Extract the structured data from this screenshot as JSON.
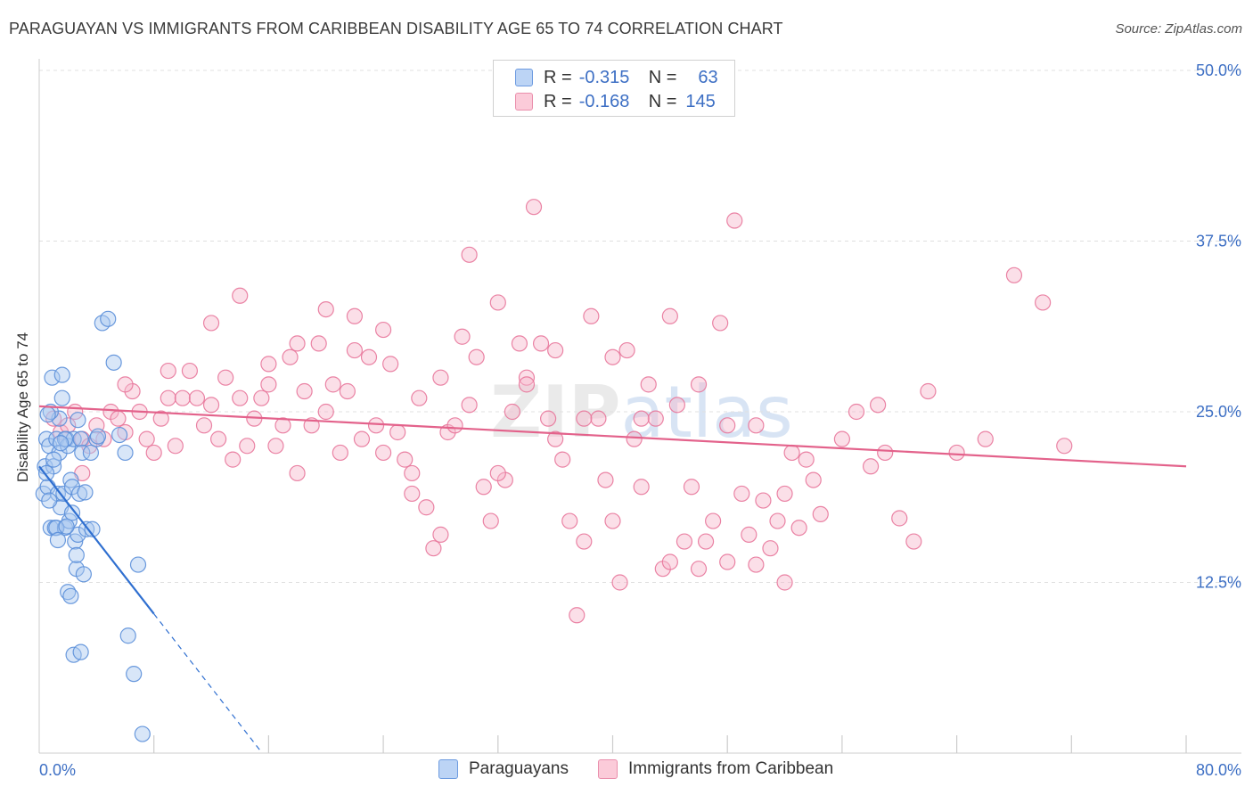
{
  "chart_data": {
    "type": "scatter",
    "title": "PARAGUAYAN VS IMMIGRANTS FROM CARIBBEAN DISABILITY AGE 65 TO 74 CORRELATION CHART",
    "source": "Source: ZipAtlas.com",
    "xlabel": "",
    "ylabel": "Disability Age 65 to 74",
    "xlim": [
      0,
      80
    ],
    "ylim": [
      0,
      50
    ],
    "x_tick_labels": [
      "0.0%",
      "80.0%"
    ],
    "y_ticks": [
      12.5,
      25.0,
      37.5,
      50.0
    ],
    "y_tick_labels": [
      "12.5%",
      "25.0%",
      "37.5%",
      "50.0%"
    ],
    "watermark": "ZIPatlas",
    "legend": {
      "r_label": "R =",
      "n_label": "N =",
      "rows": [
        {
          "r": "-0.315",
          "n": "63"
        },
        {
          "r": "-0.168",
          "n": "145"
        }
      ]
    },
    "series": [
      {
        "name": "Paraguayans",
        "color": "#5b8fd9",
        "fill": "#a8c7f0",
        "trend": {
          "x0": 0.0,
          "y0": 21.0,
          "x1": 8.0,
          "y1": 10.2,
          "dash_x1": 15.5
        },
        "points": [
          [
            0.3,
            19.0
          ],
          [
            0.4,
            21.0
          ],
          [
            0.5,
            23.0
          ],
          [
            0.6,
            19.5
          ],
          [
            0.7,
            22.5
          ],
          [
            0.8,
            16.5
          ],
          [
            0.9,
            27.5
          ],
          [
            1.0,
            21.0
          ],
          [
            1.1,
            16.5
          ],
          [
            1.2,
            23.0
          ],
          [
            1.3,
            19.0
          ],
          [
            1.4,
            22.0
          ],
          [
            1.5,
            18.0
          ],
          [
            1.6,
            26.0
          ],
          [
            1.7,
            19.0
          ],
          [
            1.8,
            16.5
          ],
          [
            1.9,
            23.0
          ],
          [
            2.0,
            22.5
          ],
          [
            2.1,
            17.0
          ],
          [
            2.2,
            20.0
          ],
          [
            2.3,
            19.5
          ],
          [
            2.4,
            23.0
          ],
          [
            2.5,
            15.5
          ],
          [
            2.6,
            13.5
          ],
          [
            2.7,
            16.0
          ],
          [
            2.8,
            19.0
          ],
          [
            2.9,
            23.0
          ],
          [
            3.0,
            22.0
          ],
          [
            0.5,
            20.5
          ],
          [
            0.7,
            18.5
          ],
          [
            1.0,
            21.5
          ],
          [
            1.2,
            16.5
          ],
          [
            1.4,
            24.5
          ],
          [
            1.6,
            27.7
          ],
          [
            1.8,
            23.0
          ],
          [
            2.0,
            11.8
          ],
          [
            2.2,
            11.5
          ],
          [
            2.4,
            7.2
          ],
          [
            2.6,
            14.5
          ],
          [
            2.9,
            7.4
          ],
          [
            3.1,
            13.1
          ],
          [
            3.3,
            16.4
          ],
          [
            3.6,
            22.0
          ],
          [
            4.0,
            23.0
          ],
          [
            4.4,
            31.5
          ],
          [
            4.8,
            31.8
          ],
          [
            5.2,
            28.6
          ],
          [
            5.6,
            23.3
          ],
          [
            6.0,
            22.0
          ],
          [
            6.2,
            8.6
          ],
          [
            6.6,
            5.8
          ],
          [
            6.9,
            13.8
          ],
          [
            7.2,
            1.4
          ],
          [
            0.8,
            25.0
          ],
          [
            1.5,
            22.7
          ],
          [
            1.9,
            16.6
          ],
          [
            2.3,
            17.6
          ],
          [
            2.7,
            24.4
          ],
          [
            3.2,
            19.1
          ],
          [
            3.7,
            16.4
          ],
          [
            4.1,
            23.2
          ],
          [
            1.3,
            15.6
          ],
          [
            0.6,
            24.8
          ]
        ]
      },
      {
        "name": "Immigrants from Caribbean",
        "color": "#e8779b",
        "fill": "#f7b8cb",
        "trend": {
          "x0": 0.0,
          "y0": 25.4,
          "x1": 80.0,
          "y1": 21.0
        },
        "points": [
          [
            1.0,
            24.5
          ],
          [
            1.5,
            23.5
          ],
          [
            2.0,
            24.0
          ],
          [
            2.5,
            25.0
          ],
          [
            3.0,
            23.0
          ],
          [
            3.5,
            22.5
          ],
          [
            4.0,
            24.0
          ],
          [
            4.5,
            23.0
          ],
          [
            5.0,
            25.0
          ],
          [
            5.5,
            24.5
          ],
          [
            6.0,
            23.5
          ],
          [
            6.5,
            26.5
          ],
          [
            7.0,
            25.0
          ],
          [
            7.5,
            23.0
          ],
          [
            8.0,
            22.0
          ],
          [
            8.5,
            24.5
          ],
          [
            9.0,
            26.0
          ],
          [
            9.5,
            22.5
          ],
          [
            10.0,
            26.0
          ],
          [
            10.5,
            28.0
          ],
          [
            11.0,
            26.0
          ],
          [
            11.5,
            24.0
          ],
          [
            12.0,
            25.5
          ],
          [
            12.5,
            23.0
          ],
          [
            13.0,
            27.5
          ],
          [
            13.5,
            21.5
          ],
          [
            14.0,
            26.0
          ],
          [
            14.5,
            22.5
          ],
          [
            15.0,
            24.5
          ],
          [
            15.5,
            26.0
          ],
          [
            16.0,
            27.0
          ],
          [
            16.5,
            22.5
          ],
          [
            17.0,
            24.0
          ],
          [
            17.5,
            29.0
          ],
          [
            18.0,
            20.5
          ],
          [
            18.5,
            26.5
          ],
          [
            19.0,
            24.0
          ],
          [
            19.5,
            30.0
          ],
          [
            20.0,
            25.0
          ],
          [
            20.5,
            27.0
          ],
          [
            21.0,
            22.0
          ],
          [
            21.5,
            26.5
          ],
          [
            22.0,
            32.0
          ],
          [
            22.5,
            23.0
          ],
          [
            23.0,
            29.0
          ],
          [
            23.5,
            24.0
          ],
          [
            24.0,
            22.0
          ],
          [
            24.5,
            28.5
          ],
          [
            25.0,
            23.5
          ],
          [
            25.5,
            21.5
          ],
          [
            26.0,
            19.0
          ],
          [
            26.5,
            26.0
          ],
          [
            27.0,
            18.0
          ],
          [
            27.5,
            15.0
          ],
          [
            28.0,
            27.5
          ],
          [
            28.5,
            23.5
          ],
          [
            29.0,
            24.0
          ],
          [
            29.5,
            30.5
          ],
          [
            30.0,
            25.5
          ],
          [
            30.5,
            29.0
          ],
          [
            31.0,
            19.5
          ],
          [
            31.5,
            17.0
          ],
          [
            32.0,
            33.0
          ],
          [
            32.5,
            20.0
          ],
          [
            33.0,
            25.0
          ],
          [
            33.5,
            30.0
          ],
          [
            34.0,
            27.5
          ],
          [
            34.5,
            40.0
          ],
          [
            35.0,
            30.0
          ],
          [
            35.5,
            24.5
          ],
          [
            36.0,
            29.5
          ],
          [
            36.5,
            21.5
          ],
          [
            37.0,
            17.0
          ],
          [
            37.5,
            10.1
          ],
          [
            38.0,
            15.5
          ],
          [
            38.5,
            32.0
          ],
          [
            39.0,
            24.5
          ],
          [
            39.5,
            20.0
          ],
          [
            40.0,
            17.0
          ],
          [
            40.5,
            12.5
          ],
          [
            41.0,
            29.5
          ],
          [
            41.5,
            23.0
          ],
          [
            42.0,
            19.5
          ],
          [
            42.5,
            27.0
          ],
          [
            43.0,
            24.5
          ],
          [
            43.5,
            13.5
          ],
          [
            44.0,
            32.0
          ],
          [
            44.5,
            25.5
          ],
          [
            45.0,
            15.5
          ],
          [
            45.5,
            19.5
          ],
          [
            46.0,
            13.5
          ],
          [
            46.5,
            15.5
          ],
          [
            47.0,
            17.0
          ],
          [
            47.5,
            31.5
          ],
          [
            48.0,
            14.0
          ],
          [
            48.5,
            39.0
          ],
          [
            49.0,
            19.0
          ],
          [
            49.5,
            16.0
          ],
          [
            50.0,
            13.8
          ],
          [
            50.5,
            18.5
          ],
          [
            51.0,
            15.0
          ],
          [
            51.5,
            17.0
          ],
          [
            52.0,
            12.5
          ],
          [
            52.5,
            22.0
          ],
          [
            53.0,
            16.5
          ],
          [
            53.5,
            21.5
          ],
          [
            54.0,
            20.0
          ],
          [
            54.5,
            17.5
          ],
          [
            56.0,
            23.0
          ],
          [
            57.0,
            25.0
          ],
          [
            58.5,
            25.5
          ],
          [
            59.0,
            22.0
          ],
          [
            60.0,
            17.2
          ],
          [
            61.0,
            15.5
          ],
          [
            62.0,
            26.5
          ],
          [
            64.0,
            22.0
          ],
          [
            66.0,
            23.0
          ],
          [
            68.0,
            35.0
          ],
          [
            70.0,
            33.0
          ],
          [
            71.5,
            22.5
          ],
          [
            3.0,
            20.5
          ],
          [
            6.0,
            27.0
          ],
          [
            9.0,
            28.0
          ],
          [
            12.0,
            31.5
          ],
          [
            14.0,
            33.5
          ],
          [
            16.0,
            28.5
          ],
          [
            18.0,
            30.0
          ],
          [
            20.0,
            32.5
          ],
          [
            22.0,
            29.5
          ],
          [
            24.0,
            31.0
          ],
          [
            26.0,
            20.5
          ],
          [
            28.0,
            16.0
          ],
          [
            30.0,
            36.5
          ],
          [
            32.0,
            20.5
          ],
          [
            34.0,
            27.0
          ],
          [
            36.0,
            23.0
          ],
          [
            38.0,
            24.5
          ],
          [
            40.0,
            29.0
          ],
          [
            42.0,
            24.5
          ],
          [
            44.0,
            14.0
          ],
          [
            46.0,
            27.0
          ],
          [
            48.0,
            24.0
          ],
          [
            50.0,
            24.0
          ],
          [
            52.0,
            19.0
          ],
          [
            58.0,
            21.0
          ]
        ]
      }
    ]
  },
  "legend_bottom": [
    "Paraguayans",
    "Immigrants from Caribbean"
  ]
}
